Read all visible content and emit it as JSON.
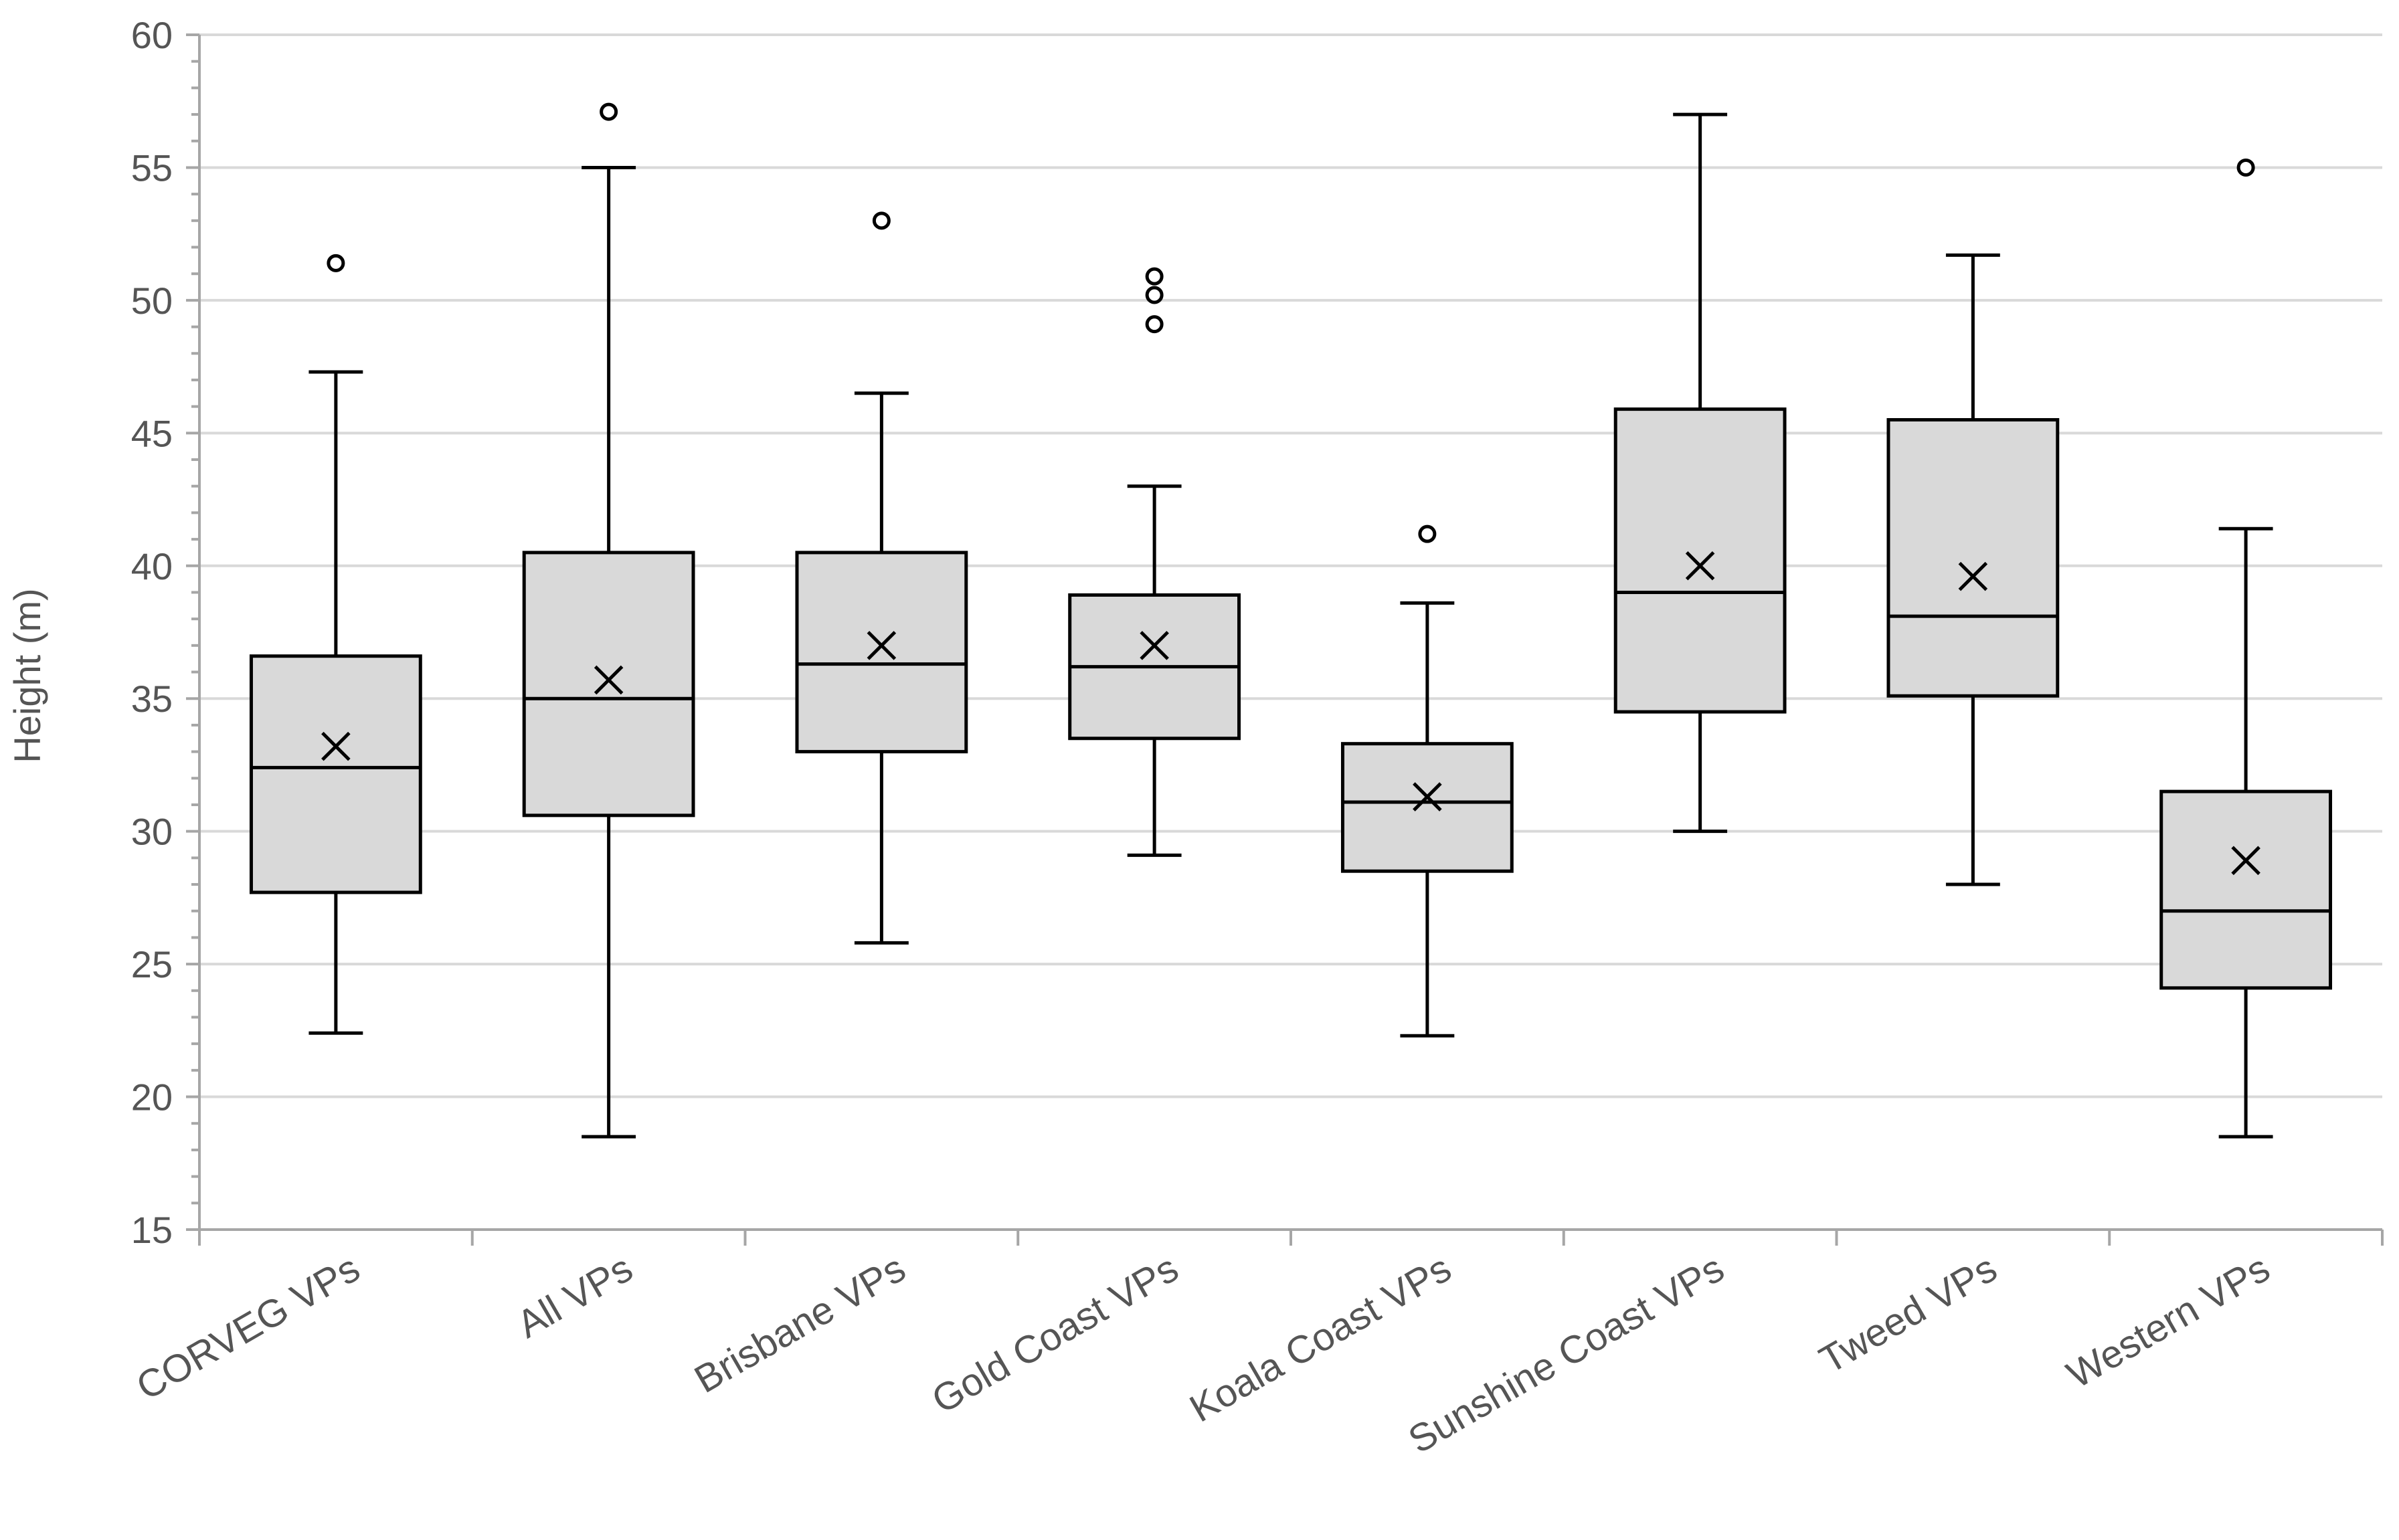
{
  "chart_data": {
    "type": "boxplot",
    "title": "",
    "xlabel": "",
    "ylabel": "Height (m)",
    "ylim": [
      15,
      60
    ],
    "ytick_step": 5,
    "grid": true,
    "colors": {
      "box_fill": "#d9d9d9",
      "stroke": "#000000",
      "grid": "#d9d9d9",
      "axis": "#a6a6a6",
      "text": "#555555"
    },
    "categories": [
      "CORVEG VPs",
      "All VPs",
      "Brisbane VPs",
      "Gold Coast VPs",
      "Koala Coast VPs",
      "Sunshine Coast VPs",
      "Tweed VPs",
      "Western VPs"
    ],
    "boxes": [
      {
        "name": "CORVEG VPs",
        "min": 22.4,
        "q1": 27.7,
        "median": 32.4,
        "q3": 36.6,
        "max": 47.3,
        "mean": 33.2,
        "outliers": [
          51.4
        ]
      },
      {
        "name": "All VPs",
        "min": 18.5,
        "q1": 30.6,
        "median": 35.0,
        "q3": 40.5,
        "max": 55.0,
        "mean": 35.7,
        "outliers": [
          57.1
        ]
      },
      {
        "name": "Brisbane VPs",
        "min": 25.8,
        "q1": 33.0,
        "median": 36.3,
        "q3": 40.5,
        "max": 46.5,
        "mean": 37.0,
        "outliers": [
          53.0
        ]
      },
      {
        "name": "Gold Coast VPs",
        "min": 29.1,
        "q1": 33.5,
        "median": 36.2,
        "q3": 38.9,
        "max": 43.0,
        "mean": 37.0,
        "outliers": [
          49.1,
          50.2,
          50.9
        ]
      },
      {
        "name": "Koala Coast VPs",
        "min": 22.3,
        "q1": 28.5,
        "median": 31.1,
        "q3": 33.3,
        "max": 38.6,
        "mean": 31.3,
        "outliers": [
          41.2
        ]
      },
      {
        "name": "Sunshine Coast VPs",
        "min": 30.0,
        "q1": 34.5,
        "median": 39.0,
        "q3": 45.9,
        "max": 57.0,
        "mean": 40.0,
        "outliers": []
      },
      {
        "name": "Tweed VPs",
        "min": 28.0,
        "q1": 35.1,
        "median": 38.1,
        "q3": 45.5,
        "max": 51.7,
        "mean": 39.6,
        "outliers": []
      },
      {
        "name": "Western VPs",
        "min": 18.5,
        "q1": 24.1,
        "median": 27.0,
        "q3": 31.5,
        "max": 41.4,
        "mean": 28.9,
        "outliers": [
          55.0
        ]
      }
    ]
  }
}
